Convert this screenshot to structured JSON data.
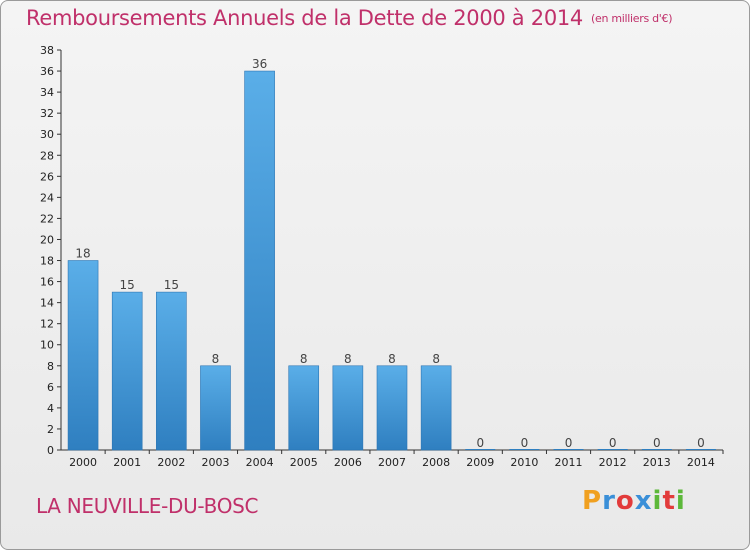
{
  "header": {
    "title": "Remboursements Annuels de la Dette de 2000 à 2014",
    "unit": "(en milliers d'€)"
  },
  "footer": {
    "commune": "LA NEUVILLE-DU-BOSC",
    "logo_letters": [
      {
        "ch": "P",
        "color": "#f0a020"
      },
      {
        "ch": "r",
        "color": "#3a8fd8"
      },
      {
        "ch": "o",
        "color": "#e23b3b"
      },
      {
        "ch": "x",
        "color": "#3a8fd8"
      },
      {
        "ch": "i",
        "color": "#5cb83a"
      },
      {
        "ch": "t",
        "color": "#e23b3b"
      },
      {
        "ch": "i",
        "color": "#5cb83a"
      }
    ]
  },
  "chart_data": {
    "type": "bar",
    "title": "Remboursements Annuels de la Dette de 2000 à 2014",
    "categories": [
      "2000",
      "2001",
      "2002",
      "2003",
      "2004",
      "2005",
      "2006",
      "2007",
      "2008",
      "2009",
      "2010",
      "2011",
      "2012",
      "2013",
      "2014"
    ],
    "values": [
      18,
      15,
      15,
      8,
      36,
      8,
      8,
      8,
      8,
      0,
      0,
      0,
      0,
      0,
      0
    ],
    "ylim": [
      0,
      38
    ],
    "ytick_step": 2,
    "grid": false,
    "bar_color_top": "#5aaee8",
    "bar_color_bottom": "#2f7fc0"
  }
}
